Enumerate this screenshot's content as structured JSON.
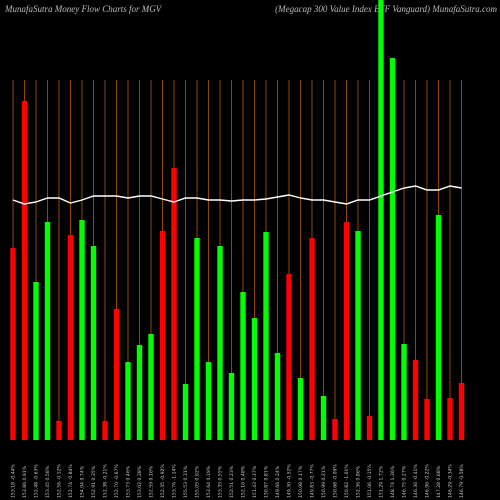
{
  "chart_data": {
    "type": "bar",
    "title": "MunafaSutra  Money Flow  Charts for MGV",
    "subtitle": "(Megacap 300  Value   Index ETF Vanguard) MunafaSutra.com",
    "categories": [
      "153.18 -0.44%",
      "153.86 0.91%",
      "152.48 -0.63%",
      "153.45 0.58%",
      "152.56 -0.12%",
      "152.74 -0.84%",
      "154.04 0.74%",
      "152.91 0.35%",
      "152.38 -0.21%",
      "152.70 -0.67%",
      "153.73 0.46%",
      "153.02 0.28%",
      "152.59 0.16%",
      "152.35 -0.92%",
      "153.76 -1.14%",
      "155.53 0.31%",
      "155.05 0.92%",
      "153.64 0.19%",
      "153.35 0.55%",
      "152.51 0.23%",
      "152.16 0.48%",
      "151.43 0.37%",
      "150.87 0.81%",
      "149.66 0.24%",
      "149.30 -0.52%",
      "150.08 0.17%",
      "149.83 -0.77%",
      "150.99 0.21%",
      "150.68 -0.09%",
      "150.82 -1.01%",
      "152.36 0.86%",
      "151.06 -0.15%",
      "151.29 1.72%",
      "148.74 1.36%",
      "146.75 0.27%",
      "146.36 -0.41%",
      "146.96 -0.22%",
      "147.28 0.68%",
      "146.29 -0.34%",
      "146.79 -0.58%"
    ],
    "values": [
      192,
      339,
      158,
      218,
      19,
      205,
      220,
      194,
      19,
      131,
      78,
      95,
      106,
      209,
      272,
      56,
      202,
      78,
      194,
      67,
      148,
      122,
      208,
      87,
      166,
      62,
      202,
      44,
      21,
      218,
      209,
      24,
      440,
      382,
      96,
      80,
      41,
      225,
      42,
      57
    ],
    "colors": [
      "#ff0000",
      "#ff0000",
      "#00ff00",
      "#00ff00",
      "#ff0000",
      "#ff0000",
      "#00ff00",
      "#00ff00",
      "#ff0000",
      "#ff0000",
      "#00ff00",
      "#00ff00",
      "#00ff00",
      "#ff0000",
      "#ff0000",
      "#00ff00",
      "#00ff00",
      "#00ff00",
      "#00ff00",
      "#00ff00",
      "#00ff00",
      "#00ff00",
      "#00ff00",
      "#00ff00",
      "#ff0000",
      "#00ff00",
      "#ff0000",
      "#00ff00",
      "#ff0000",
      "#ff0000",
      "#00ff00",
      "#ff0000",
      "#00ff00",
      "#00ff00",
      "#00ff00",
      "#ff0000",
      "#ff0000",
      "#00ff00",
      "#ff0000",
      "#ff0000"
    ],
    "line": {
      "color": "#ffffff",
      "values": [
        240,
        236,
        238,
        242,
        242,
        237,
        240,
        244,
        244,
        244,
        242,
        244,
        244,
        241,
        238,
        242,
        242,
        240,
        240,
        239,
        240,
        240,
        241,
        243,
        245,
        242,
        240,
        240,
        238,
        236,
        240,
        240,
        244,
        248,
        252,
        254,
        250,
        250,
        254,
        252
      ]
    },
    "grid_color": "#b35a00",
    "ylim": [
      0,
      440
    ]
  }
}
